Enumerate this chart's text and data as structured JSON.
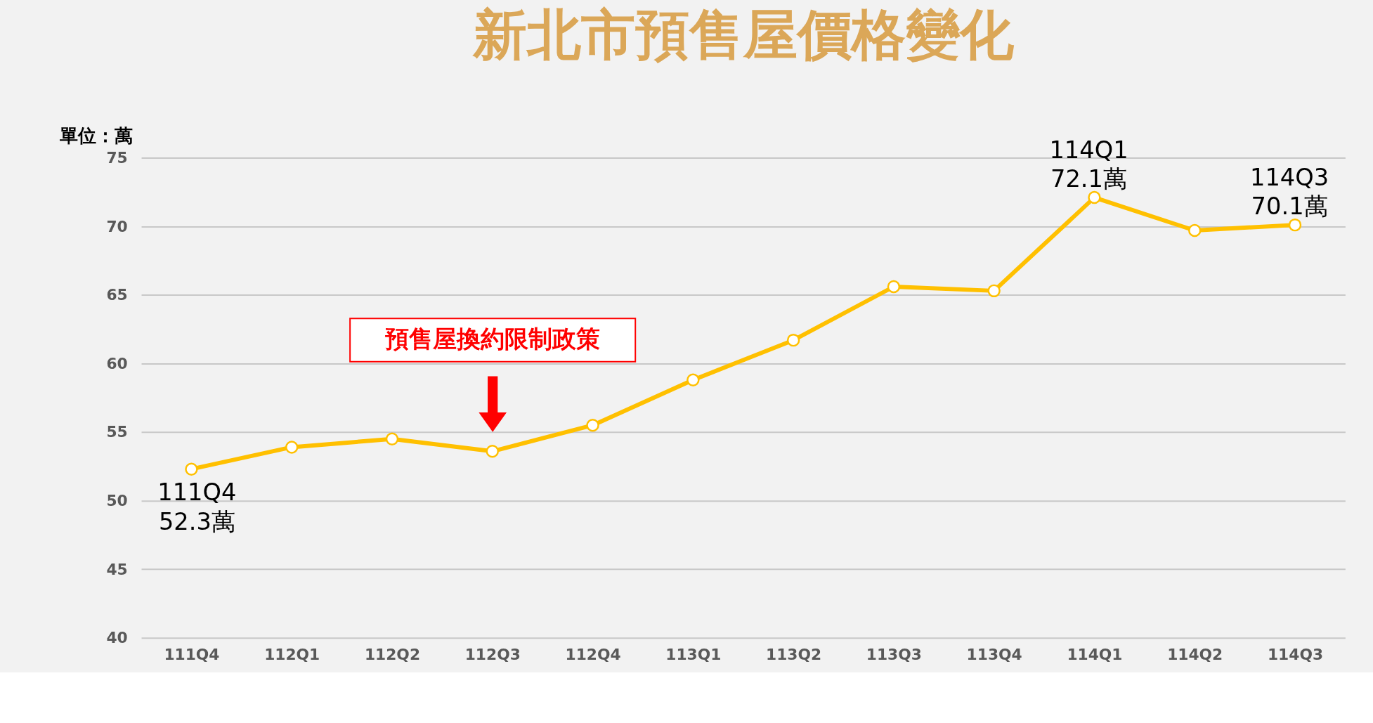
{
  "chart_data": {
    "type": "line",
    "title": "新北市預售屋價格變化",
    "ylabel": "單位：萬",
    "categories": [
      "111Q4",
      "112Q1",
      "112Q2",
      "112Q3",
      "112Q4",
      "113Q1",
      "113Q2",
      "113Q3",
      "113Q4",
      "114Q1",
      "114Q2",
      "114Q3"
    ],
    "series": [
      {
        "color": "#ffc000",
        "values": [
          52.3,
          53.9,
          54.5,
          53.6,
          55.5,
          58.8,
          61.7,
          65.6,
          65.3,
          72.1,
          69.7,
          70.1
        ]
      }
    ],
    "ylim": [
      40,
      75
    ],
    "yticks": [
      40,
      45,
      50,
      55,
      60,
      65,
      70,
      75
    ],
    "grid": "y",
    "marker": "circle",
    "line_style": "solid",
    "annotations": [
      {
        "text": "111Q4\n52.3萬",
        "x": "111Q4",
        "y": 52.3
      },
      {
        "text": "114Q1\n72.1萬",
        "x": "114Q1",
        "y": 72.1
      },
      {
        "text": "114Q3\n70.1萬",
        "x": "114Q3",
        "y": 70.1
      },
      "預售屋換約限制政策"
    ]
  }
}
